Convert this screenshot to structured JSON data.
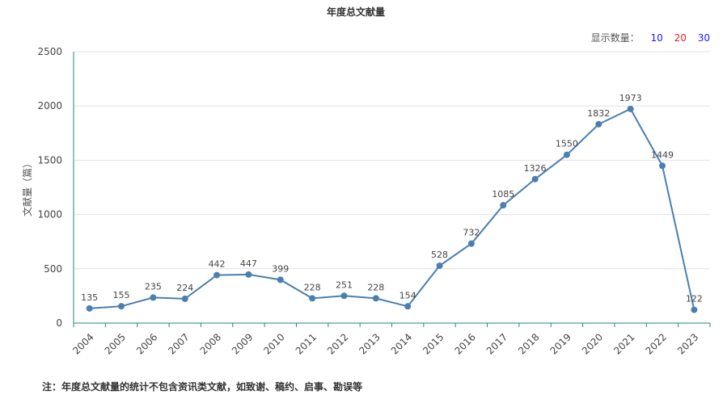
{
  "display": {
    "label": "显示数量：",
    "options": [
      "10",
      "20",
      "30"
    ]
  },
  "footnote": "注：年度总文献量的统计不包含资讯类文献，如致谢、稿约、启事、勘误等",
  "colors": {
    "line": "#4a7fb0",
    "axis": "#1f8a7a",
    "grid": "#e3e3e3"
  },
  "chart_data": {
    "type": "line",
    "title": "年度总文献量",
    "xlabel": "",
    "ylabel": "文献量（篇）",
    "ylim": [
      0,
      2500
    ],
    "yticks": [
      "0",
      "500",
      "1000",
      "1500",
      "2000",
      "2500"
    ],
    "grid": true,
    "categories": [
      "2004",
      "2005",
      "2006",
      "2007",
      "2008",
      "2009",
      "2010",
      "2011",
      "2012",
      "2013",
      "2014",
      "2015",
      "2016",
      "2017",
      "2018",
      "2019",
      "2020",
      "2021",
      "2022",
      "2023"
    ],
    "series": [
      {
        "values": [
          135,
          155,
          235,
          224,
          442,
          447,
          399,
          228,
          251,
          228,
          154,
          528,
          732,
          1085,
          1326,
          1550,
          1832,
          1973,
          1449,
          122
        ]
      }
    ]
  }
}
